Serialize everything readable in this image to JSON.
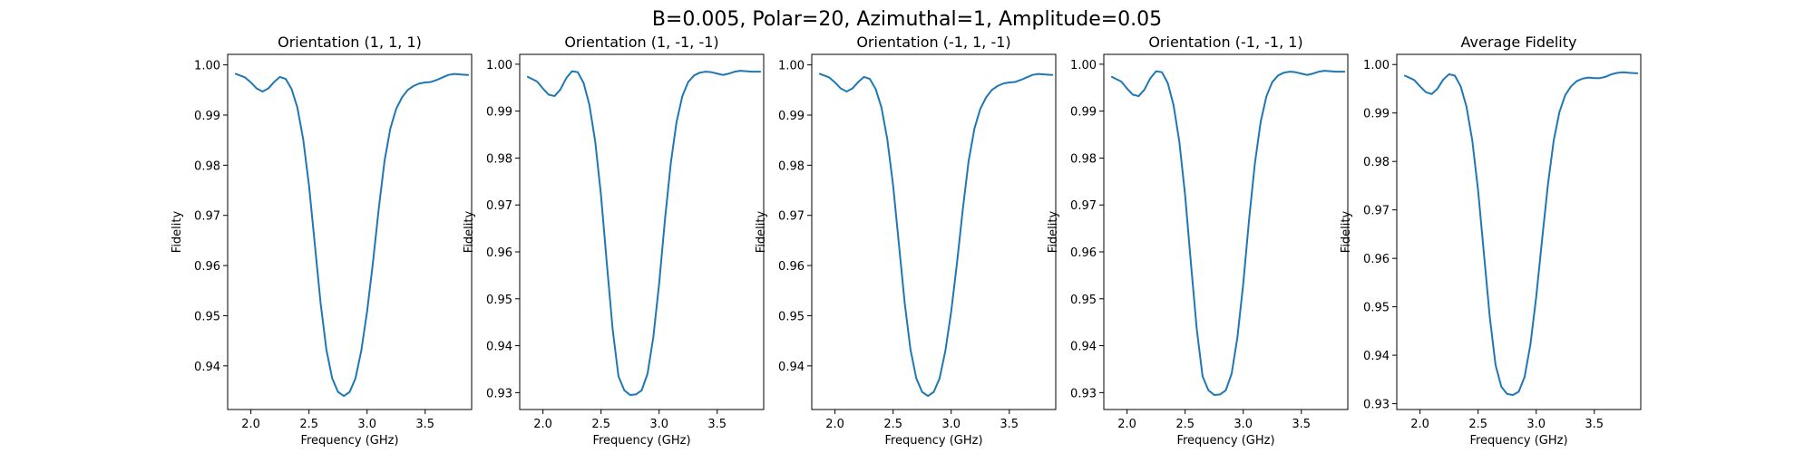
{
  "figure": {
    "suptitle": "B=0.005, Polar=20, Azimuthal=1, Amplitude=0.05"
  },
  "chart_data": [
    {
      "type": "line",
      "title": "Orientation (1, 1, 1)",
      "xlabel": "Frequency (GHz)",
      "ylabel": "Fidelity",
      "xlim": [
        1.8,
        3.9
      ],
      "ylim": [
        0.9313,
        1.0021
      ],
      "xticks": [
        2.0,
        2.5,
        3.0,
        3.5
      ],
      "xtick_labels": [
        "2.0",
        "2.5",
        "3.0",
        "3.5"
      ],
      "yticks": [
        0.94,
        0.95,
        0.96,
        0.97,
        0.98,
        0.99,
        1.0
      ],
      "ytick_labels": [
        "0.94",
        "0.95",
        "0.96",
        "0.97",
        "0.98",
        "0.99",
        "1.00"
      ],
      "grid": false,
      "series": [
        {
          "color": "#1f77b4",
          "x": [
            1.87,
            1.95,
            2.0,
            2.05,
            2.1,
            2.15,
            2.2,
            2.25,
            2.3,
            2.35,
            2.4,
            2.45,
            2.5,
            2.55,
            2.6,
            2.65,
            2.7,
            2.75,
            2.8,
            2.85,
            2.9,
            2.95,
            3.0,
            3.05,
            3.1,
            3.15,
            3.2,
            3.25,
            3.3,
            3.35,
            3.4,
            3.45,
            3.5,
            3.55,
            3.6,
            3.65,
            3.7,
            3.75,
            3.8,
            3.87
          ],
          "y": [
            0.9982,
            0.9975,
            0.9965,
            0.9953,
            0.9947,
            0.9953,
            0.9966,
            0.9976,
            0.9972,
            0.9952,
            0.9915,
            0.9852,
            0.976,
            0.9643,
            0.9525,
            0.9432,
            0.9375,
            0.9348,
            0.934,
            0.9348,
            0.9375,
            0.943,
            0.9508,
            0.9605,
            0.9712,
            0.9808,
            0.9873,
            0.9912,
            0.9935,
            0.995,
            0.9958,
            0.9963,
            0.9965,
            0.9966,
            0.997,
            0.9975,
            0.998,
            0.9982,
            0.9981,
            0.998
          ]
        }
      ]
    },
    {
      "type": "line",
      "title": "Orientation (1, -1, -1)",
      "xlabel": "Frequency (GHz)",
      "ylabel": "Fidelity",
      "xlim": [
        1.8,
        3.9
      ],
      "ylim": [
        0.9264,
        1.0021
      ],
      "xticks": [
        2.0,
        2.5,
        3.0,
        3.5
      ],
      "xtick_labels": [
        "2.0",
        "2.5",
        "3.0",
        "3.5"
      ],
      "yticks": [
        0.93,
        0.94,
        0.95,
        0.96,
        0.97,
        0.98,
        0.99,
        1.0
      ],
      "ytick_labels": [
        "0.93",
        "0.94",
        "0.95",
        "0.96",
        "0.97",
        "0.98",
        "0.99",
        "1.00"
      ],
      "grid": false,
      "series": [
        {
          "color": "#1f77b4",
          "x": [
            1.87,
            1.95,
            2.0,
            2.05,
            2.1,
            2.15,
            2.2,
            2.25,
            2.3,
            2.35,
            2.4,
            2.45,
            2.5,
            2.55,
            2.6,
            2.65,
            2.7,
            2.75,
            2.8,
            2.85,
            2.9,
            2.95,
            3.0,
            3.05,
            3.1,
            3.15,
            3.2,
            3.25,
            3.3,
            3.35,
            3.4,
            3.45,
            3.5,
            3.55,
            3.6,
            3.65,
            3.7,
            3.75,
            3.8,
            3.87
          ],
          "y": [
            0.9973,
            0.9963,
            0.9948,
            0.9935,
            0.9932,
            0.9946,
            0.997,
            0.9985,
            0.9983,
            0.996,
            0.9913,
            0.9835,
            0.972,
            0.9575,
            0.9435,
            0.9335,
            0.9305,
            0.9295,
            0.9296,
            0.9305,
            0.934,
            0.9418,
            0.9532,
            0.9668,
            0.9788,
            0.9877,
            0.9932,
            0.9962,
            0.9976,
            0.9982,
            0.9984,
            0.9983,
            0.998,
            0.9977,
            0.998,
            0.9984,
            0.9986,
            0.9985,
            0.9984,
            0.9984
          ]
        }
      ]
    },
    {
      "type": "line",
      "title": "Orientation (-1, 1, -1)",
      "xlabel": "Frequency (GHz)",
      "ylabel": "Fidelity",
      "xlim": [
        1.8,
        3.9
      ],
      "ylim": [
        0.9313,
        1.0021
      ],
      "xticks": [
        2.0,
        2.5,
        3.0,
        3.5
      ],
      "xtick_labels": [
        "2.0",
        "2.5",
        "3.0",
        "3.5"
      ],
      "yticks": [
        0.94,
        0.95,
        0.96,
        0.97,
        0.98,
        0.99,
        1.0
      ],
      "ytick_labels": [
        "0.94",
        "0.95",
        "0.96",
        "0.97",
        "0.98",
        "0.99",
        "1.00"
      ],
      "grid": false,
      "series": [
        {
          "color": "#1f77b4",
          "x": [
            1.87,
            1.95,
            2.0,
            2.05,
            2.1,
            2.15,
            2.2,
            2.25,
            2.3,
            2.35,
            2.4,
            2.45,
            2.5,
            2.55,
            2.6,
            2.65,
            2.7,
            2.75,
            2.8,
            2.85,
            2.9,
            2.95,
            3.0,
            3.05,
            3.1,
            3.15,
            3.2,
            3.25,
            3.3,
            3.35,
            3.4,
            3.45,
            3.5,
            3.55,
            3.6,
            3.65,
            3.7,
            3.75,
            3.8,
            3.87
          ],
          "y": [
            0.9982,
            0.9975,
            0.9965,
            0.9953,
            0.9947,
            0.9953,
            0.9966,
            0.9976,
            0.9972,
            0.9952,
            0.9915,
            0.9852,
            0.976,
            0.9643,
            0.9525,
            0.9432,
            0.9375,
            0.9348,
            0.934,
            0.9348,
            0.9375,
            0.943,
            0.9508,
            0.9605,
            0.9712,
            0.9808,
            0.9873,
            0.9912,
            0.9935,
            0.995,
            0.9958,
            0.9963,
            0.9965,
            0.9966,
            0.997,
            0.9975,
            0.998,
            0.9982,
            0.9981,
            0.998
          ]
        }
      ]
    },
    {
      "type": "line",
      "title": "Orientation (-1, -1, 1)",
      "xlabel": "Frequency (GHz)",
      "ylabel": "Fidelity",
      "xlim": [
        1.8,
        3.9
      ],
      "ylim": [
        0.9264,
        1.0021
      ],
      "xticks": [
        2.0,
        2.5,
        3.0,
        3.5
      ],
      "xtick_labels": [
        "2.0",
        "2.5",
        "3.0",
        "3.5"
      ],
      "yticks": [
        0.93,
        0.94,
        0.95,
        0.96,
        0.97,
        0.98,
        0.99,
        1.0
      ],
      "ytick_labels": [
        "0.93",
        "0.94",
        "0.95",
        "0.96",
        "0.97",
        "0.98",
        "0.99",
        "1.00"
      ],
      "grid": false,
      "series": [
        {
          "color": "#1f77b4",
          "x": [
            1.87,
            1.95,
            2.0,
            2.05,
            2.1,
            2.15,
            2.2,
            2.25,
            2.3,
            2.35,
            2.4,
            2.45,
            2.5,
            2.55,
            2.6,
            2.65,
            2.7,
            2.75,
            2.8,
            2.85,
            2.9,
            2.95,
            3.0,
            3.05,
            3.1,
            3.15,
            3.2,
            3.25,
            3.3,
            3.35,
            3.4,
            3.45,
            3.5,
            3.55,
            3.6,
            3.65,
            3.7,
            3.75,
            3.8,
            3.87
          ],
          "y": [
            0.9973,
            0.9963,
            0.9948,
            0.9935,
            0.9932,
            0.9946,
            0.997,
            0.9985,
            0.9983,
            0.996,
            0.9913,
            0.9835,
            0.972,
            0.9575,
            0.9435,
            0.9335,
            0.9305,
            0.9295,
            0.9296,
            0.9305,
            0.934,
            0.9418,
            0.9532,
            0.9668,
            0.9788,
            0.9877,
            0.9932,
            0.9962,
            0.9976,
            0.9982,
            0.9984,
            0.9983,
            0.998,
            0.9977,
            0.998,
            0.9984,
            0.9986,
            0.9985,
            0.9984,
            0.9984
          ]
        }
      ]
    },
    {
      "type": "line",
      "title": "Average Fidelity",
      "xlabel": "Frequency (GHz)",
      "ylabel": "Fidelity",
      "xlim": [
        1.8,
        3.9
      ],
      "ylim": [
        0.9288,
        1.0021
      ],
      "xticks": [
        2.0,
        2.5,
        3.0,
        3.5
      ],
      "xtick_labels": [
        "2.0",
        "2.5",
        "3.0",
        "3.5"
      ],
      "yticks": [
        0.93,
        0.94,
        0.95,
        0.96,
        0.97,
        0.98,
        0.99,
        1.0
      ],
      "ytick_labels": [
        "0.93",
        "0.94",
        "0.95",
        "0.96",
        "0.97",
        "0.98",
        "0.99",
        "1.00"
      ],
      "grid": false,
      "series": [
        {
          "color": "#1f77b4",
          "x": [
            1.87,
            1.95,
            2.0,
            2.05,
            2.1,
            2.15,
            2.2,
            2.25,
            2.3,
            2.35,
            2.4,
            2.45,
            2.5,
            2.55,
            2.6,
            2.65,
            2.7,
            2.75,
            2.8,
            2.85,
            2.9,
            2.95,
            3.0,
            3.05,
            3.1,
            3.15,
            3.2,
            3.25,
            3.3,
            3.35,
            3.4,
            3.45,
            3.5,
            3.55,
            3.6,
            3.65,
            3.7,
            3.75,
            3.8,
            3.87
          ],
          "y": [
            0.9977,
            0.9968,
            0.9955,
            0.9943,
            0.9939,
            0.995,
            0.9969,
            0.998,
            0.9977,
            0.9955,
            0.9913,
            0.9843,
            0.974,
            0.961,
            0.948,
            0.938,
            0.9335,
            0.932,
            0.9318,
            0.9325,
            0.9355,
            0.9422,
            0.952,
            0.9637,
            0.975,
            0.9842,
            0.9902,
            0.9937,
            0.9955,
            0.9966,
            0.9971,
            0.9973,
            0.9972,
            0.9972,
            0.9975,
            0.998,
            0.9983,
            0.9984,
            0.9983,
            0.9982
          ]
        }
      ]
    }
  ]
}
